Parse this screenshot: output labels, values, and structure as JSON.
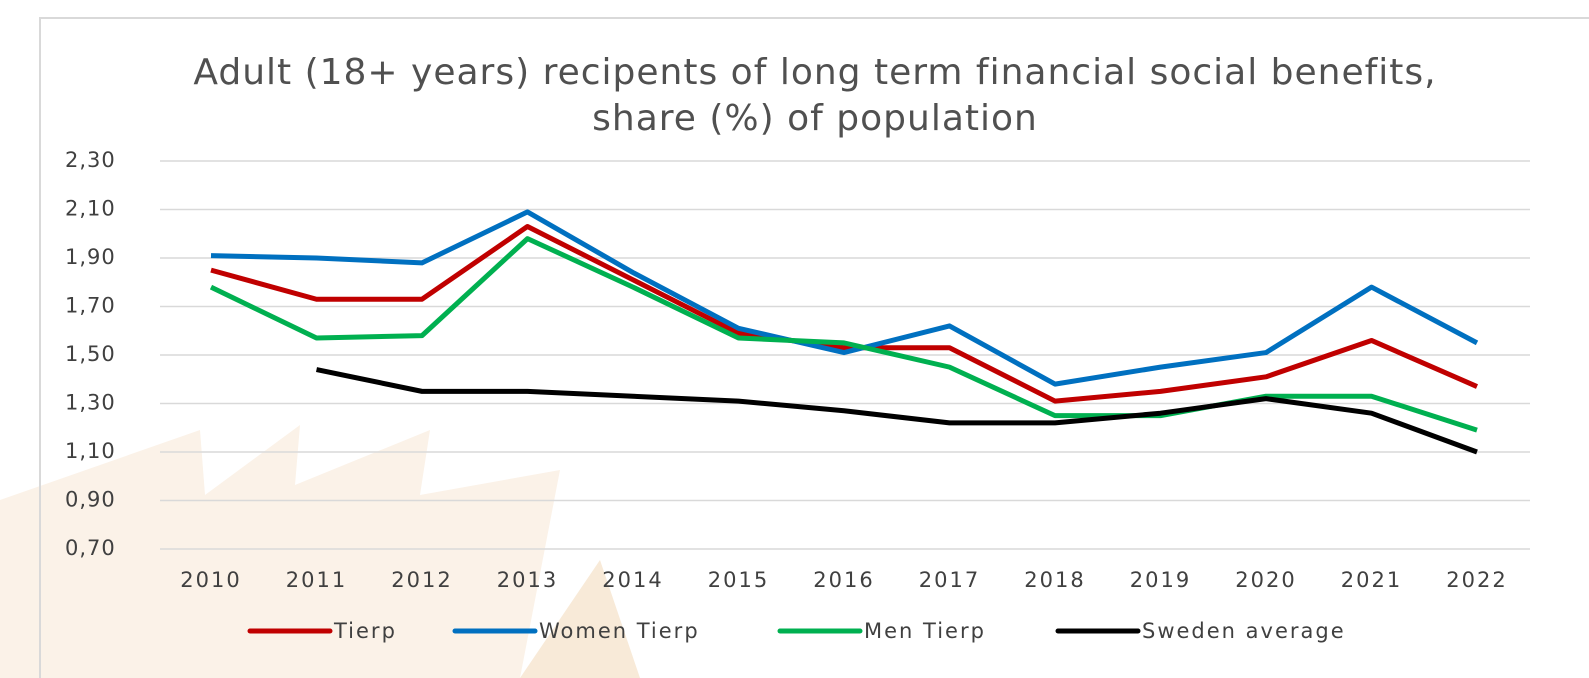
{
  "chart_data": {
    "type": "line",
    "title": "Adult (18+ years) recipents of long term financial social benefits, share (%) of population",
    "categories": [
      "2010",
      "2011",
      "2012",
      "2013",
      "2014",
      "2015",
      "2016",
      "2017",
      "2018",
      "2019",
      "2020",
      "2021",
      "2022"
    ],
    "series": [
      {
        "name": "Tierp",
        "color": "#c00000",
        "values": [
          1.85,
          1.73,
          1.73,
          2.03,
          1.81,
          1.59,
          1.53,
          1.53,
          1.31,
          1.35,
          1.41,
          1.56,
          1.37
        ]
      },
      {
        "name": "Women Tierp",
        "color": "#0070c0",
        "values": [
          1.91,
          1.9,
          1.88,
          2.09,
          1.84,
          1.61,
          1.51,
          1.62,
          1.38,
          1.45,
          1.51,
          1.78,
          1.55
        ]
      },
      {
        "name": "Men Tierp",
        "color": "#00b050",
        "values": [
          1.78,
          1.57,
          1.58,
          1.98,
          1.78,
          1.57,
          1.55,
          1.45,
          1.25,
          1.25,
          1.33,
          1.33,
          1.19
        ]
      },
      {
        "name": "Sweden average",
        "color": "#000000",
        "values": [
          null,
          1.44,
          1.35,
          1.35,
          1.33,
          1.31,
          1.27,
          1.22,
          1.22,
          1.26,
          1.32,
          1.26,
          1.1
        ]
      }
    ],
    "ylim": [
      0.7,
      2.3
    ],
    "yticks": [
      {
        "value": 0.7,
        "label": "0,70"
      },
      {
        "value": 0.9,
        "label": "0,90"
      },
      {
        "value": 1.1,
        "label": "1,10"
      },
      {
        "value": 1.3,
        "label": "1,30"
      },
      {
        "value": 1.5,
        "label": "1,50"
      },
      {
        "value": 1.7,
        "label": "1,70"
      },
      {
        "value": 1.9,
        "label": "1,90"
      },
      {
        "value": 2.1,
        "label": "2,10"
      },
      {
        "value": 2.3,
        "label": "2,30"
      }
    ],
    "grid": true,
    "legend": "bottom"
  }
}
